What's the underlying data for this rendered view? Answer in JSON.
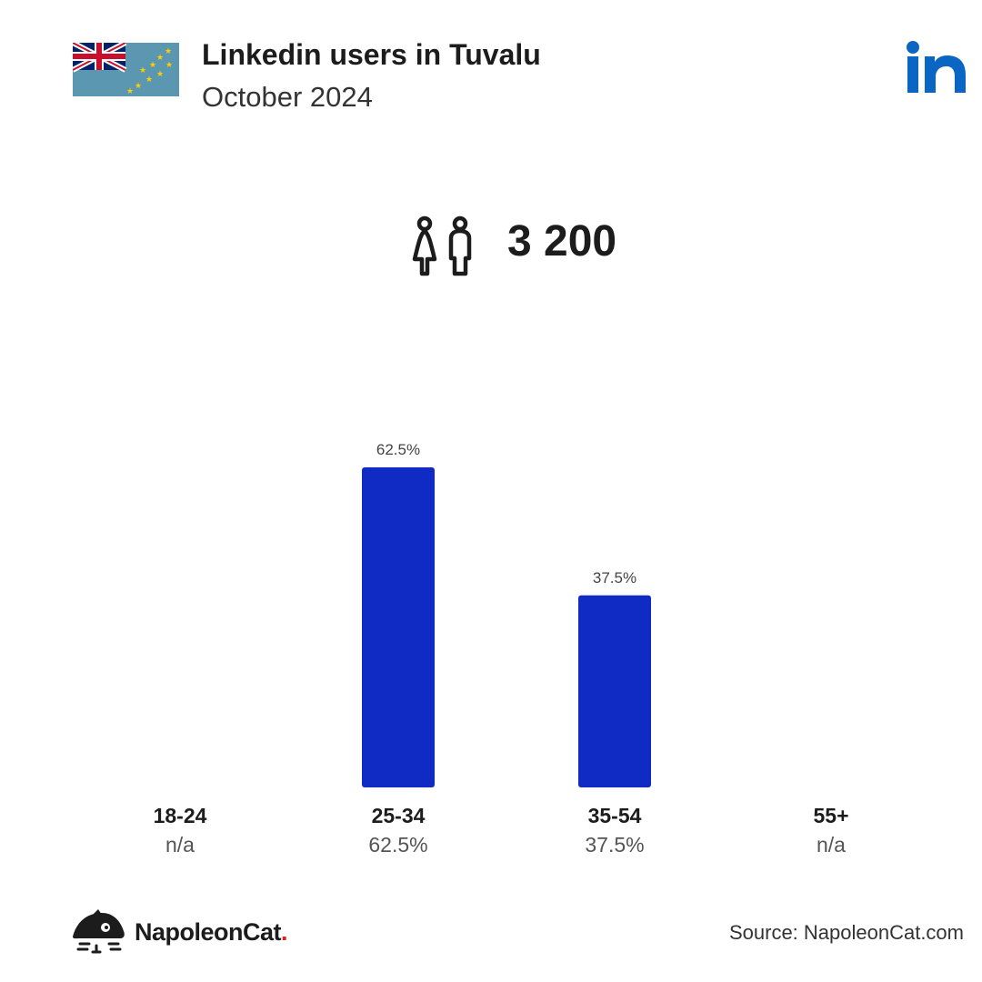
{
  "header": {
    "title": "Linkedin users in Tuvalu",
    "subtitle": "October 2024"
  },
  "total": {
    "value": "3 200",
    "icon": "people-icon"
  },
  "colors": {
    "bar": "#0f2bc3",
    "linkedin": "#0a66c2",
    "flag_sky": "#5b97b1",
    "flag_navy": "#012169",
    "flag_red": "#c8102e",
    "star": "#ffce00"
  },
  "chart_data": {
    "type": "bar",
    "categories": [
      "18-24",
      "25-34",
      "35-54",
      "55+"
    ],
    "values": [
      null,
      62.5,
      37.5,
      null
    ],
    "value_labels": [
      "n/a",
      "62.5%",
      "37.5%",
      "n/a"
    ],
    "bar_labels": [
      "",
      "62.5%",
      "37.5%",
      ""
    ],
    "ylim": [
      0,
      62.5
    ],
    "grid": false,
    "legend": "none"
  },
  "footer": {
    "brand": "NapoleonCat",
    "brand_dot": ".",
    "source": "Source: NapoleonCat.com"
  }
}
